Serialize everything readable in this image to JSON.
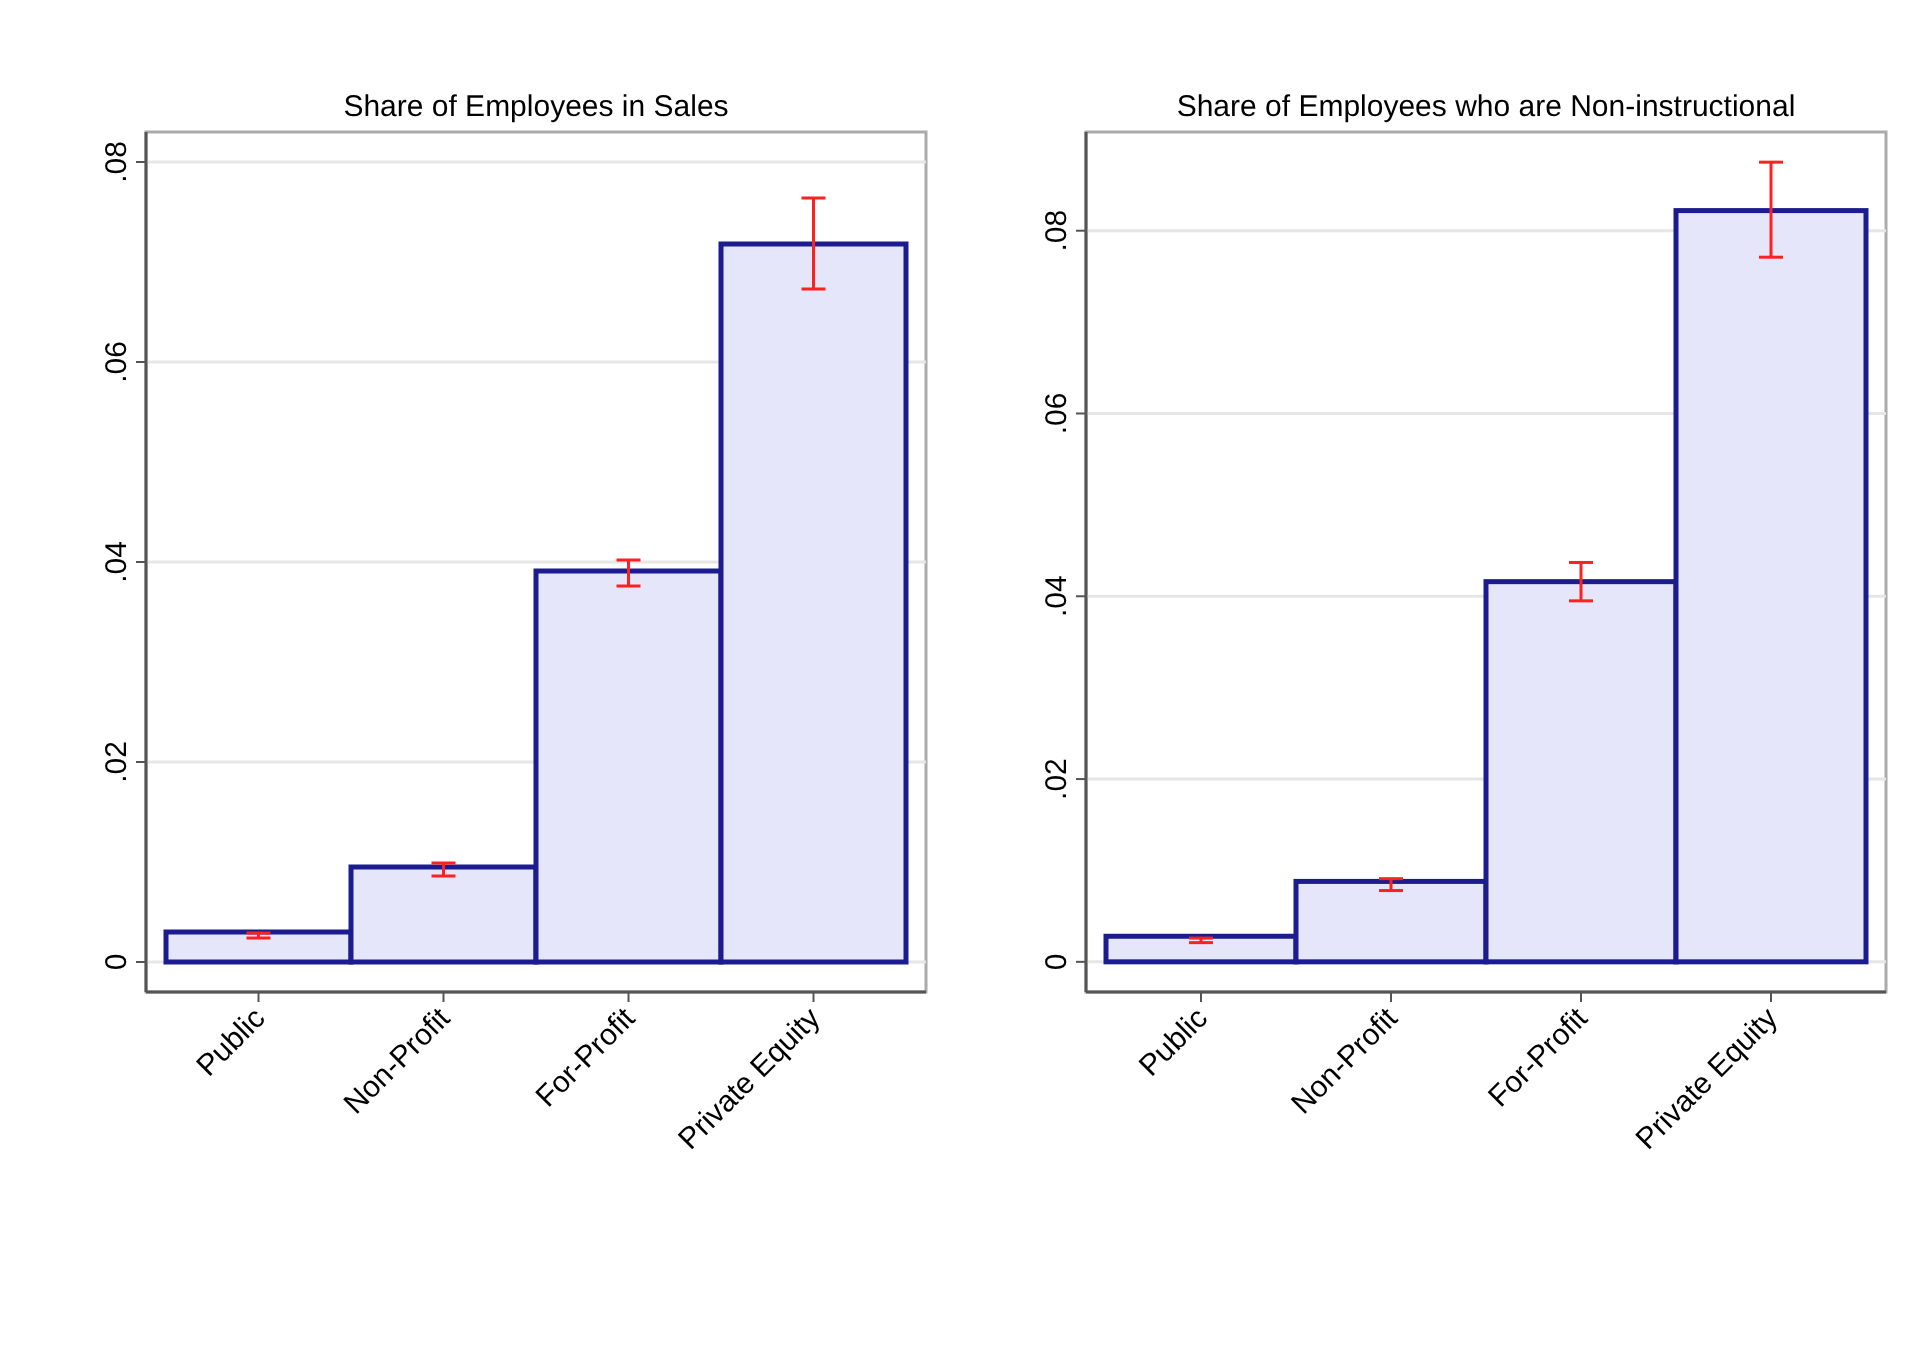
{
  "chart_data": [
    {
      "type": "bar",
      "title": "Share of Employees in Sales",
      "categories": [
        "Public",
        "Non-Profit",
        "For-Profit",
        "Private Equity"
      ],
      "values": [
        0.003,
        0.0095,
        0.0391,
        0.0718
      ],
      "errors": [
        [
          0.0024,
          0.0029
        ],
        [
          0.0086,
          0.0099
        ],
        [
          0.0376,
          0.0402
        ],
        [
          0.0673,
          0.0764
        ]
      ],
      "color": "#e6e6fa",
      "ylim": [
        -0.003,
        0.083
      ],
      "yticks": [
        {
          "value": 0,
          "label": "0"
        },
        {
          "value": 0.02,
          "label": ".02"
        },
        {
          "value": 0.04,
          "label": ".04"
        },
        {
          "value": 0.06,
          "label": ".06"
        },
        {
          "value": 0.08,
          "label": ".08"
        }
      ],
      "grid": "y"
    },
    {
      "type": "bar",
      "title": "Share of Employees who are Non-instructional",
      "categories": [
        "Public",
        "Non-Profit",
        "For-Profit",
        "Private Equity"
      ],
      "values": [
        0.0028,
        0.0088,
        0.0416,
        0.0822
      ],
      "errors": [
        [
          0.0021,
          0.0026
        ],
        [
          0.0078,
          0.0091
        ],
        [
          0.0395,
          0.0437
        ],
        [
          0.0771,
          0.0875
        ]
      ],
      "color": "#e6e6fa",
      "ylim": [
        -0.0033,
        0.0908
      ],
      "yticks": [
        {
          "value": 0,
          "label": "0"
        },
        {
          "value": 0.02,
          "label": ".02"
        },
        {
          "value": 0.04,
          "label": ".04"
        },
        {
          "value": 0.06,
          "label": ".06"
        },
        {
          "value": 0.08,
          "label": ".08"
        }
      ],
      "grid": "y"
    }
  ]
}
